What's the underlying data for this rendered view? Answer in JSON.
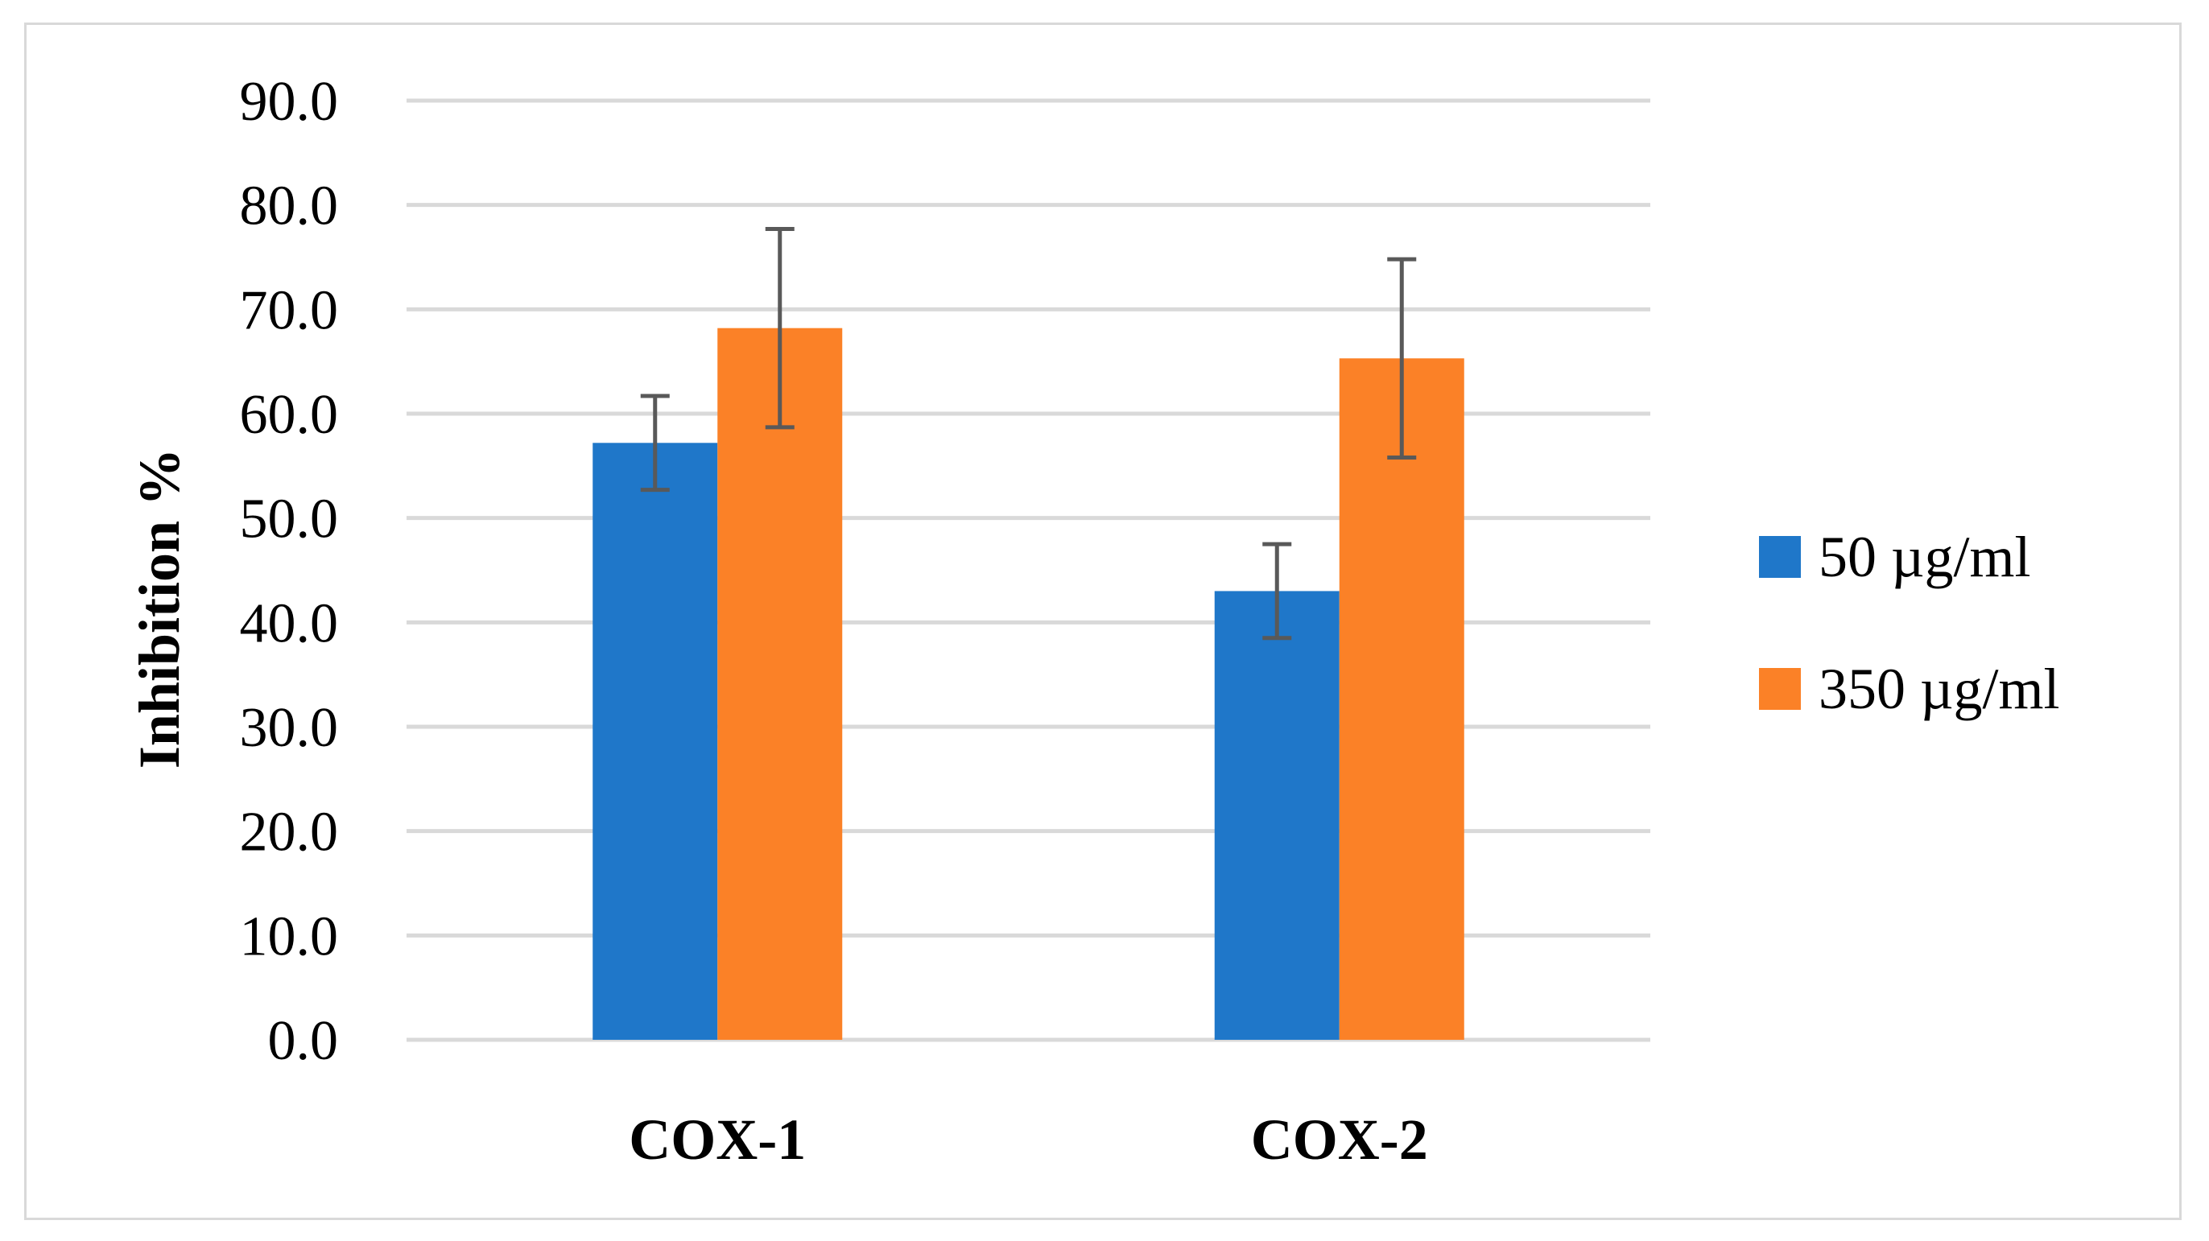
{
  "chart_data": {
    "type": "bar",
    "title": "",
    "xlabel": "",
    "ylabel": "Inhibition %",
    "ylim": [
      0,
      90
    ],
    "yticks": [
      "0.0",
      "10.0",
      "20.0",
      "30.0",
      "40.0",
      "50.0",
      "60.0",
      "70.0",
      "80.0",
      "90.0"
    ],
    "grid": true,
    "legend_position": "right",
    "categories": [
      "COX-1",
      "COX-2"
    ],
    "series": [
      {
        "name": "50 µg/ml",
        "color": "#1f77c9",
        "values": [
          57.2,
          43.0
        ],
        "errors": [
          4.5,
          4.5
        ]
      },
      {
        "name": "350 µg/ml",
        "color": "#fb8127",
        "values": [
          68.2,
          65.3
        ],
        "errors": [
          9.5,
          9.5
        ]
      }
    ]
  }
}
